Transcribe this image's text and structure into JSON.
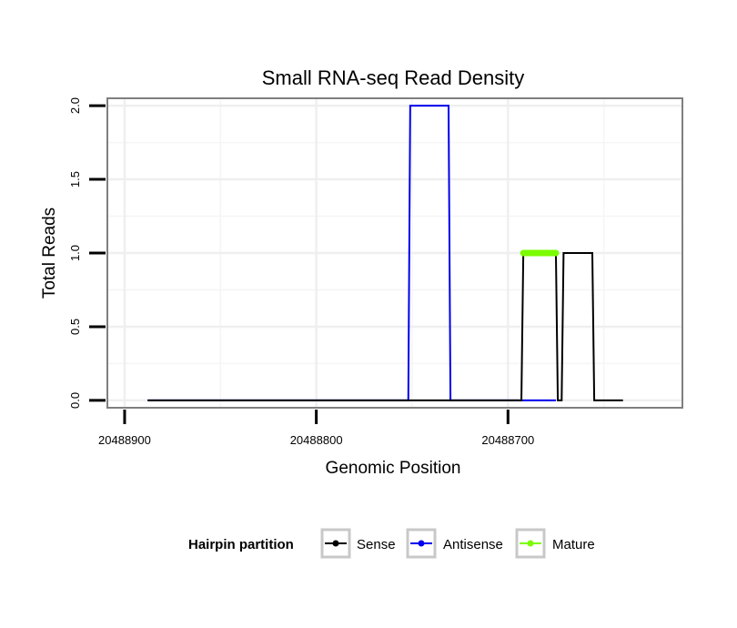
{
  "chart_data": {
    "type": "line",
    "title": "Small RNA-seq Read Density",
    "xlabel": "Genomic Position",
    "ylabel": "Total Reads",
    "xlim": [
      20488909,
      20488609
    ],
    "x_reversed": true,
    "ylim": [
      -0.05,
      2.05
    ],
    "x_ticks": [
      20488900,
      20488800,
      20488700
    ],
    "x_tick_labels": [
      "20488900",
      "20488800",
      "20488700"
    ],
    "y_ticks": [
      0.0,
      0.5,
      1.0,
      1.5,
      2.0
    ],
    "y_tick_labels": [
      "0.0",
      "0.5",
      "1.0",
      "1.5",
      "2.0"
    ],
    "grid": true,
    "legend": {
      "title": "Hairpin partition",
      "position": "bottom",
      "entries": [
        "Sense",
        "Antisense",
        "Mature"
      ]
    },
    "series": [
      {
        "name": "Antisense",
        "color": "#0000ee",
        "points": [
          [
            20488888,
            0
          ],
          [
            20488752,
            0
          ],
          [
            20488751,
            2
          ],
          [
            20488731,
            2
          ],
          [
            20488730,
            0
          ],
          [
            20488693,
            0
          ],
          [
            20488692,
            0
          ],
          [
            20488675,
            0
          ]
        ]
      },
      {
        "name": "Sense",
        "color": "#000000",
        "points": [
          [
            20488888,
            0
          ],
          [
            20488693,
            0
          ],
          [
            20488692,
            1
          ],
          [
            20488675,
            1
          ],
          [
            20488674,
            0
          ],
          [
            20488672,
            0
          ],
          [
            20488671,
            1
          ],
          [
            20488656,
            1
          ],
          [
            20488655,
            0
          ],
          [
            20488640,
            0
          ]
        ]
      },
      {
        "name": "Mature",
        "color": "#7cfc00",
        "points": [
          [
            20488692,
            1
          ],
          [
            20488675,
            1
          ]
        ]
      }
    ]
  }
}
